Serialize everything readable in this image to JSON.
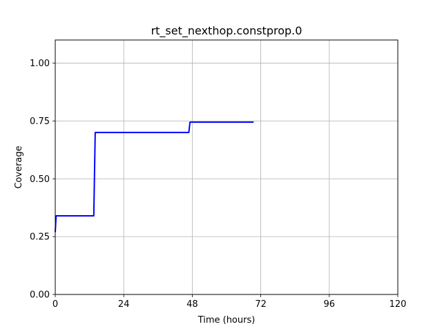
{
  "chart_data": {
    "type": "line",
    "title": "rt_set_nexthop.constprop.0",
    "xlabel": "Time (hours)",
    "ylabel": "Coverage",
    "xlim": [
      0,
      120
    ],
    "ylim": [
      0,
      1.1
    ],
    "xticks": [
      0,
      24,
      48,
      72,
      96,
      120
    ],
    "xtick_labels": [
      "0",
      "24",
      "48",
      "72",
      "96",
      "120"
    ],
    "yticks": [
      0.0,
      0.25,
      0.5,
      0.75,
      1.0
    ],
    "ytick_labels": [
      "0.00",
      "0.25",
      "0.50",
      "0.75",
      "1.00"
    ],
    "grid": true,
    "series": [
      {
        "color": "#0000ff",
        "x": [
          0,
          0.3,
          13.5,
          14,
          46.8,
          47.2,
          69.5
        ],
        "y": [
          0.27,
          0.34,
          0.34,
          0.7,
          0.7,
          0.745,
          0.745
        ]
      }
    ]
  }
}
